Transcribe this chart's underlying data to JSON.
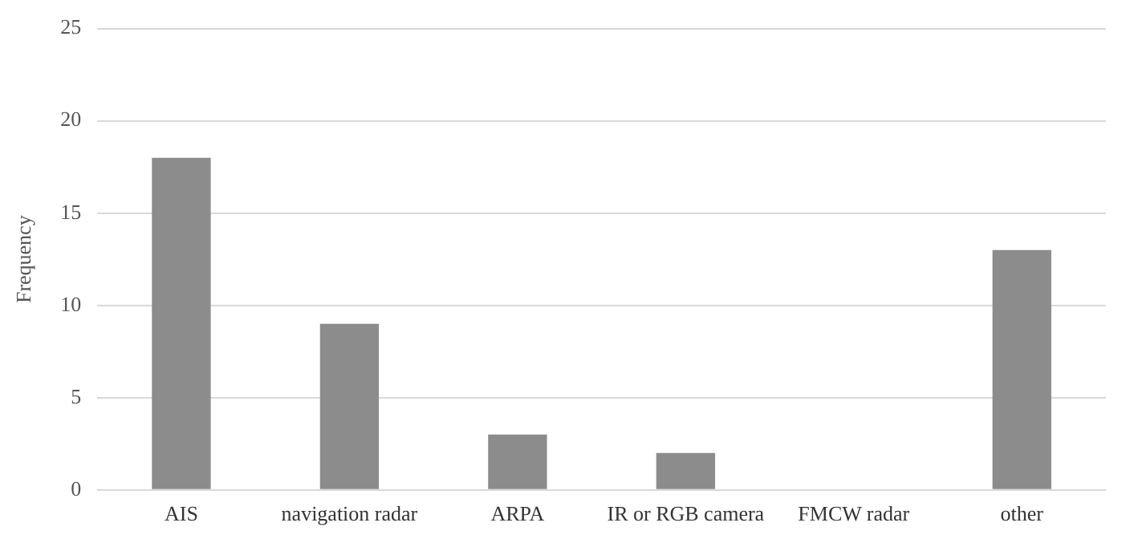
{
  "chart_data": {
    "type": "bar",
    "ylabel": "Frequency",
    "categories": [
      "AIS",
      "navigation radar",
      "ARPA",
      "IR or RGB camera",
      "FMCW radar",
      "other"
    ],
    "values": [
      18,
      9,
      3,
      2,
      0,
      13
    ],
    "color": "#8c8c8c",
    "ylim": [
      0,
      25
    ],
    "yticks": [
      0,
      5,
      10,
      15,
      20,
      25
    ],
    "grid": "y",
    "legend": false
  }
}
